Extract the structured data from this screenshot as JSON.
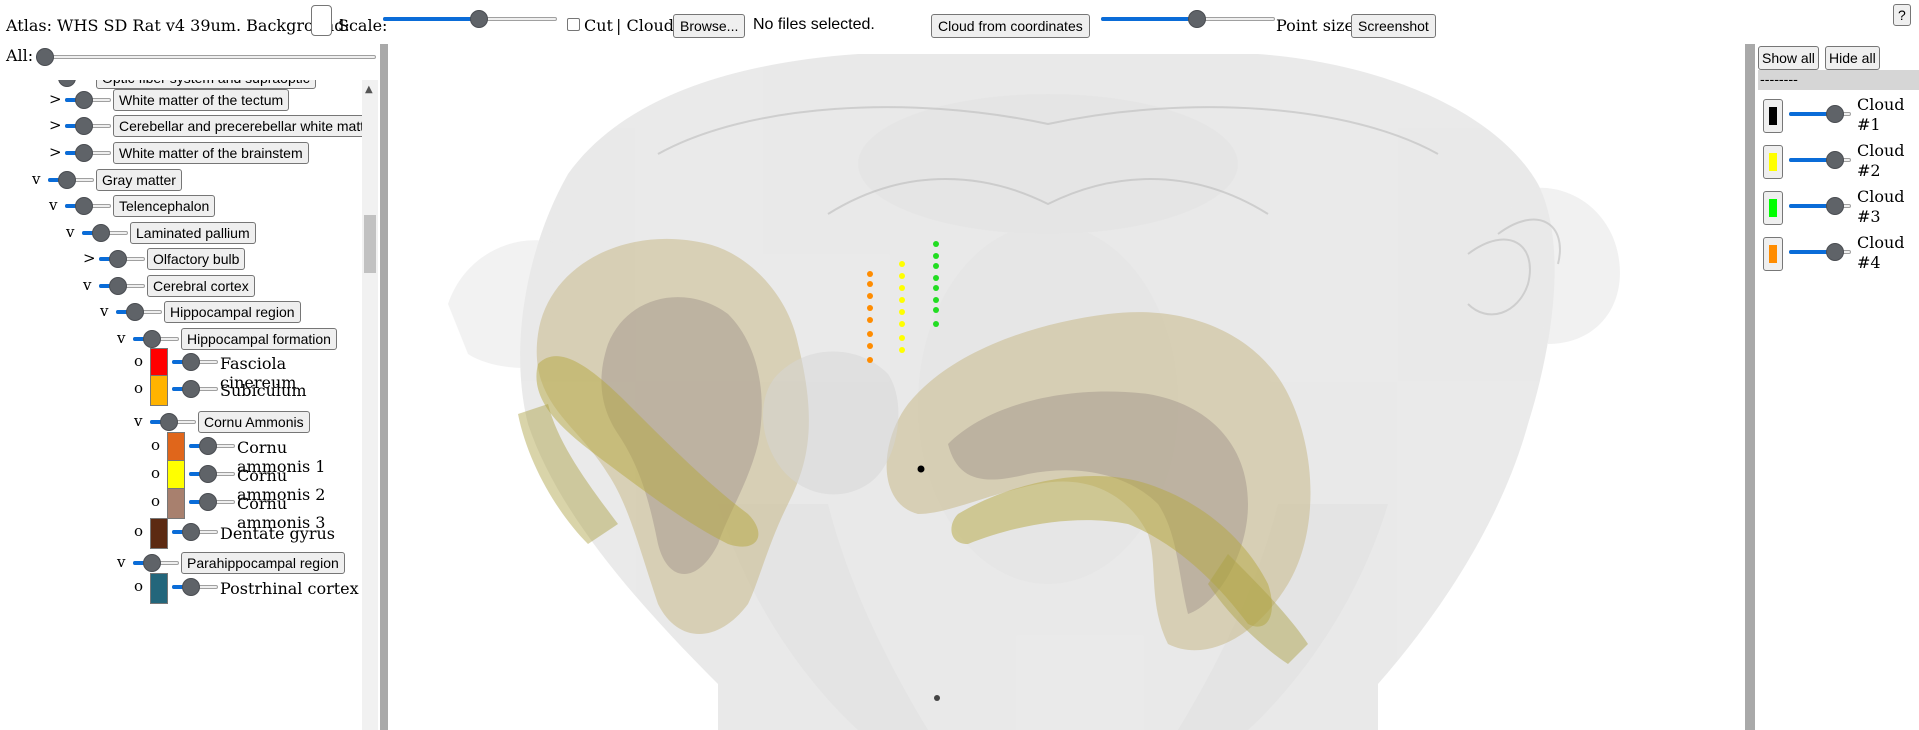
{
  "topbar": {
    "atlas_label": "Atlas: WHS SD Rat v4 39um. Background:",
    "scale_label": "Scale:",
    "scale_value": 0.56,
    "cut_label": "Cut",
    "cloud_label": "| Cloud:",
    "browse_label": "Browse...",
    "file_status": "No files selected.",
    "cloud_coords_label": "Cloud from coordinates",
    "point_size_value": 0.56,
    "point_size_label": "Point size",
    "screenshot_label": "Screenshot",
    "help_label": "?"
  },
  "left": {
    "all_label": "All:",
    "all_value": 0.0,
    "tree": [
      {
        "toggle": "",
        "label": "Optic fiber system and supraoptic",
        "kind": "button"
      },
      {
        "toggle": ">",
        "label": "White matter of the tectum",
        "kind": "button"
      },
      {
        "toggle": ">",
        "label": "Cerebellar and precerebellar white matter",
        "kind": "button"
      },
      {
        "toggle": ">",
        "label": "White matter of the brainstem",
        "kind": "button"
      },
      {
        "toggle": "v",
        "label": "Gray matter",
        "kind": "button"
      },
      {
        "toggle": "v",
        "label": "Telencephalon",
        "kind": "button"
      },
      {
        "toggle": "v",
        "label": "Laminated pallium",
        "kind": "button"
      },
      {
        "toggle": ">",
        "label": "Olfactory bulb",
        "kind": "button"
      },
      {
        "toggle": "v",
        "label": "Cerebral cortex",
        "kind": "button"
      },
      {
        "toggle": "v",
        "label": "Hippocampal region",
        "kind": "button"
      },
      {
        "toggle": "v",
        "label": "Hippocampal formation",
        "kind": "button"
      },
      {
        "toggle": "o",
        "label": "Fasciola cinereum",
        "kind": "leaf",
        "color": "#ff0000"
      },
      {
        "toggle": "o",
        "label": "Subiculum",
        "kind": "leaf",
        "color": "#ffb300"
      },
      {
        "toggle": "v",
        "label": "Cornu Ammonis",
        "kind": "button"
      },
      {
        "toggle": "o",
        "label": "Cornu ammonis 1",
        "kind": "leaf",
        "color": "#e0661b"
      },
      {
        "toggle": "o",
        "label": "Cornu ammonis 2",
        "kind": "leaf",
        "color": "#ffff00"
      },
      {
        "toggle": "o",
        "label": "Cornu ammonis 3",
        "kind": "leaf",
        "color": "#a8806e"
      },
      {
        "toggle": "o",
        "label": "Dentate gyrus",
        "kind": "leaf",
        "color": "#5c2a12"
      },
      {
        "toggle": "v",
        "label": "Parahippocampal region",
        "kind": "button"
      },
      {
        "toggle": "o",
        "label": "Postrhinal cortex",
        "kind": "leaf",
        "color": "#23667b"
      }
    ]
  },
  "right": {
    "show_all_label": "Show all",
    "hide_all_label": "Hide all",
    "separator": "--------",
    "clouds": [
      {
        "name": "Cloud #1",
        "color": "#000000",
        "value": 0.85
      },
      {
        "name": "Cloud #2",
        "color": "#ffff00",
        "value": 0.85
      },
      {
        "name": "Cloud #3",
        "color": "#00ff00",
        "value": 0.85
      },
      {
        "name": "Cloud #4",
        "color": "#ff8c00",
        "value": 0.85
      }
    ]
  },
  "colors": {
    "slider_fill": "#0a6cd8",
    "thumb": "#5f6368",
    "splitter": "#a9a9a9"
  }
}
